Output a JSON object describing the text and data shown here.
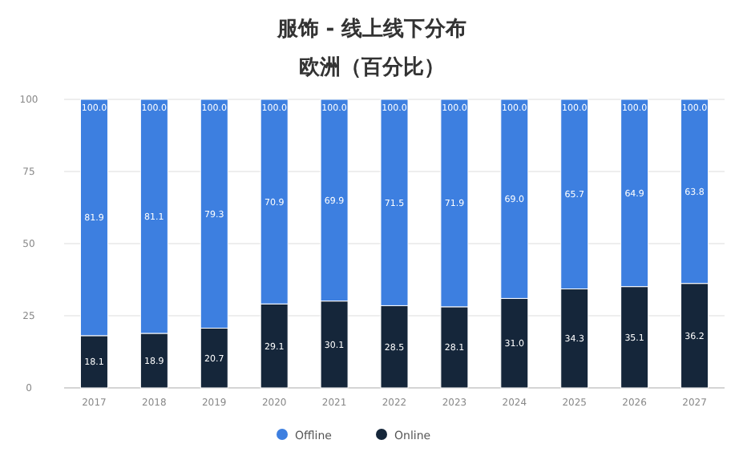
{
  "chart_data": {
    "type": "bar",
    "title": "服饰 - 线上线下分布",
    "subtitle": "欧洲（百分比）",
    "stacked": true,
    "categories": [
      "2017",
      "2018",
      "2019",
      "2020",
      "2021",
      "2022",
      "2023",
      "2024",
      "2025",
      "2026",
      "2027"
    ],
    "series": [
      {
        "name": "Online",
        "color": "#15263a",
        "values": [
          18.1,
          18.9,
          20.7,
          29.1,
          30.1,
          28.5,
          28.1,
          31.0,
          34.3,
          35.1,
          36.2
        ],
        "value_labels": [
          "18.1",
          "18.9",
          "20.7",
          "29.1",
          "30.1",
          "28.5",
          "28.1",
          "31.0",
          "34.3",
          "35.1",
          "36.2"
        ]
      },
      {
        "name": "Offline",
        "color": "#3d7fe0",
        "values": [
          81.9,
          81.1,
          79.3,
          70.9,
          69.9,
          71.5,
          71.9,
          69.0,
          65.7,
          64.9,
          63.8
        ],
        "value_labels": [
          "81.9",
          "81.1",
          "79.3",
          "70.9",
          "69.9",
          "71.5",
          "71.9",
          "69.0",
          "65.7",
          "64.9",
          "63.8"
        ]
      }
    ],
    "totals": [
      "100.0",
      "100.0",
      "100.0",
      "100.0",
      "100.0",
      "100.0",
      "100.0",
      "100.0",
      "100.0",
      "100.0",
      "100.0"
    ],
    "ylim": [
      0,
      100
    ],
    "yticks": [
      0,
      25,
      50,
      75,
      100
    ],
    "grid": "y",
    "legend": "bottom"
  }
}
